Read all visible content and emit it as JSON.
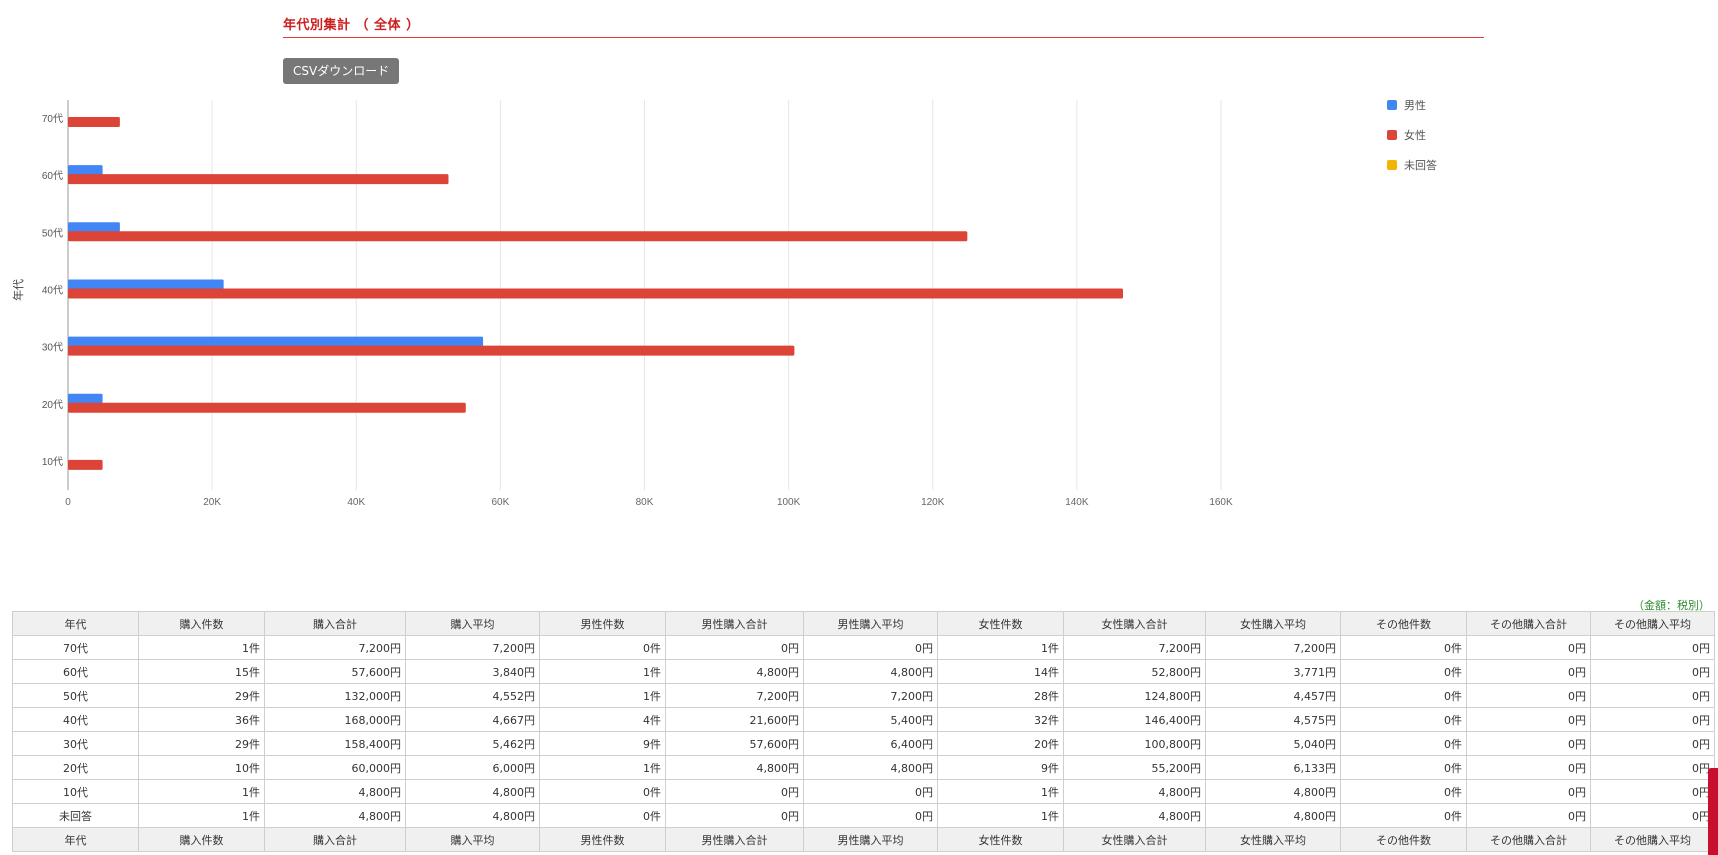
{
  "section": {
    "title": "年代別集計 （ 全体 ）",
    "csv_button_label": "CSVダウンロード"
  },
  "chart_data": {
    "type": "bar",
    "orientation": "horizontal",
    "ylabel": "年代",
    "xlabel": "",
    "categories": [
      "70代",
      "60代",
      "50代",
      "40代",
      "30代",
      "20代",
      "10代"
    ],
    "series": [
      {
        "name": "男性",
        "color": "#4285f4",
        "values": [
          0,
          4800,
          7200,
          21600,
          57600,
          4800,
          0
        ]
      },
      {
        "name": "女性",
        "color": "#db4437",
        "values": [
          7200,
          52800,
          124800,
          146400,
          100800,
          55200,
          4800
        ]
      },
      {
        "name": "未回答",
        "color": "#f4b400",
        "values": [
          0,
          0,
          0,
          0,
          0,
          0,
          0
        ]
      }
    ],
    "xlim": [
      0,
      160000
    ],
    "x_ticks": [
      0,
      20000,
      40000,
      60000,
      80000,
      100000,
      120000,
      140000,
      160000
    ],
    "x_tick_labels": [
      "0",
      "20K",
      "40K",
      "60K",
      "80K",
      "100K",
      "120K",
      "140K",
      "160K"
    ],
    "grid": true,
    "legend_position": "top-right"
  },
  "table": {
    "unit_note": "（金額：税別）",
    "headers": [
      "年代",
      "購入件数",
      "購入合計",
      "購入平均",
      "男性件数",
      "男性購入合計",
      "男性購入平均",
      "女性件数",
      "女性購入合計",
      "女性購入平均",
      "その他件数",
      "その他購入合計",
      "その他購入平均"
    ],
    "rows": [
      [
        "70代",
        "1件",
        "7,200円",
        "7,200円",
        "0件",
        "0円",
        "0円",
        "1件",
        "7,200円",
        "7,200円",
        "0件",
        "0円",
        "0円"
      ],
      [
        "60代",
        "15件",
        "57,600円",
        "3,840円",
        "1件",
        "4,800円",
        "4,800円",
        "14件",
        "52,800円",
        "3,771円",
        "0件",
        "0円",
        "0円"
      ],
      [
        "50代",
        "29件",
        "132,000円",
        "4,552円",
        "1件",
        "7,200円",
        "7,200円",
        "28件",
        "124,800円",
        "4,457円",
        "0件",
        "0円",
        "0円"
      ],
      [
        "40代",
        "36件",
        "168,000円",
        "4,667円",
        "4件",
        "21,600円",
        "5,400円",
        "32件",
        "146,400円",
        "4,575円",
        "0件",
        "0円",
        "0円"
      ],
      [
        "30代",
        "29件",
        "158,400円",
        "5,462円",
        "9件",
        "57,600円",
        "6,400円",
        "20件",
        "100,800円",
        "5,040円",
        "0件",
        "0円",
        "0円"
      ],
      [
        "20代",
        "10件",
        "60,000円",
        "6,000円",
        "1件",
        "4,800円",
        "4,800円",
        "9件",
        "55,200円",
        "6,133円",
        "0件",
        "0円",
        "0円"
      ],
      [
        "10代",
        "1件",
        "4,800円",
        "4,800円",
        "0件",
        "0円",
        "0円",
        "1件",
        "4,800円",
        "4,800円",
        "0件",
        "0円",
        "0円"
      ],
      [
        "未回答",
        "1件",
        "4,800円",
        "4,800円",
        "0件",
        "0円",
        "0円",
        "1件",
        "4,800円",
        "4,800円",
        "0件",
        "0円",
        "0円"
      ]
    ]
  }
}
